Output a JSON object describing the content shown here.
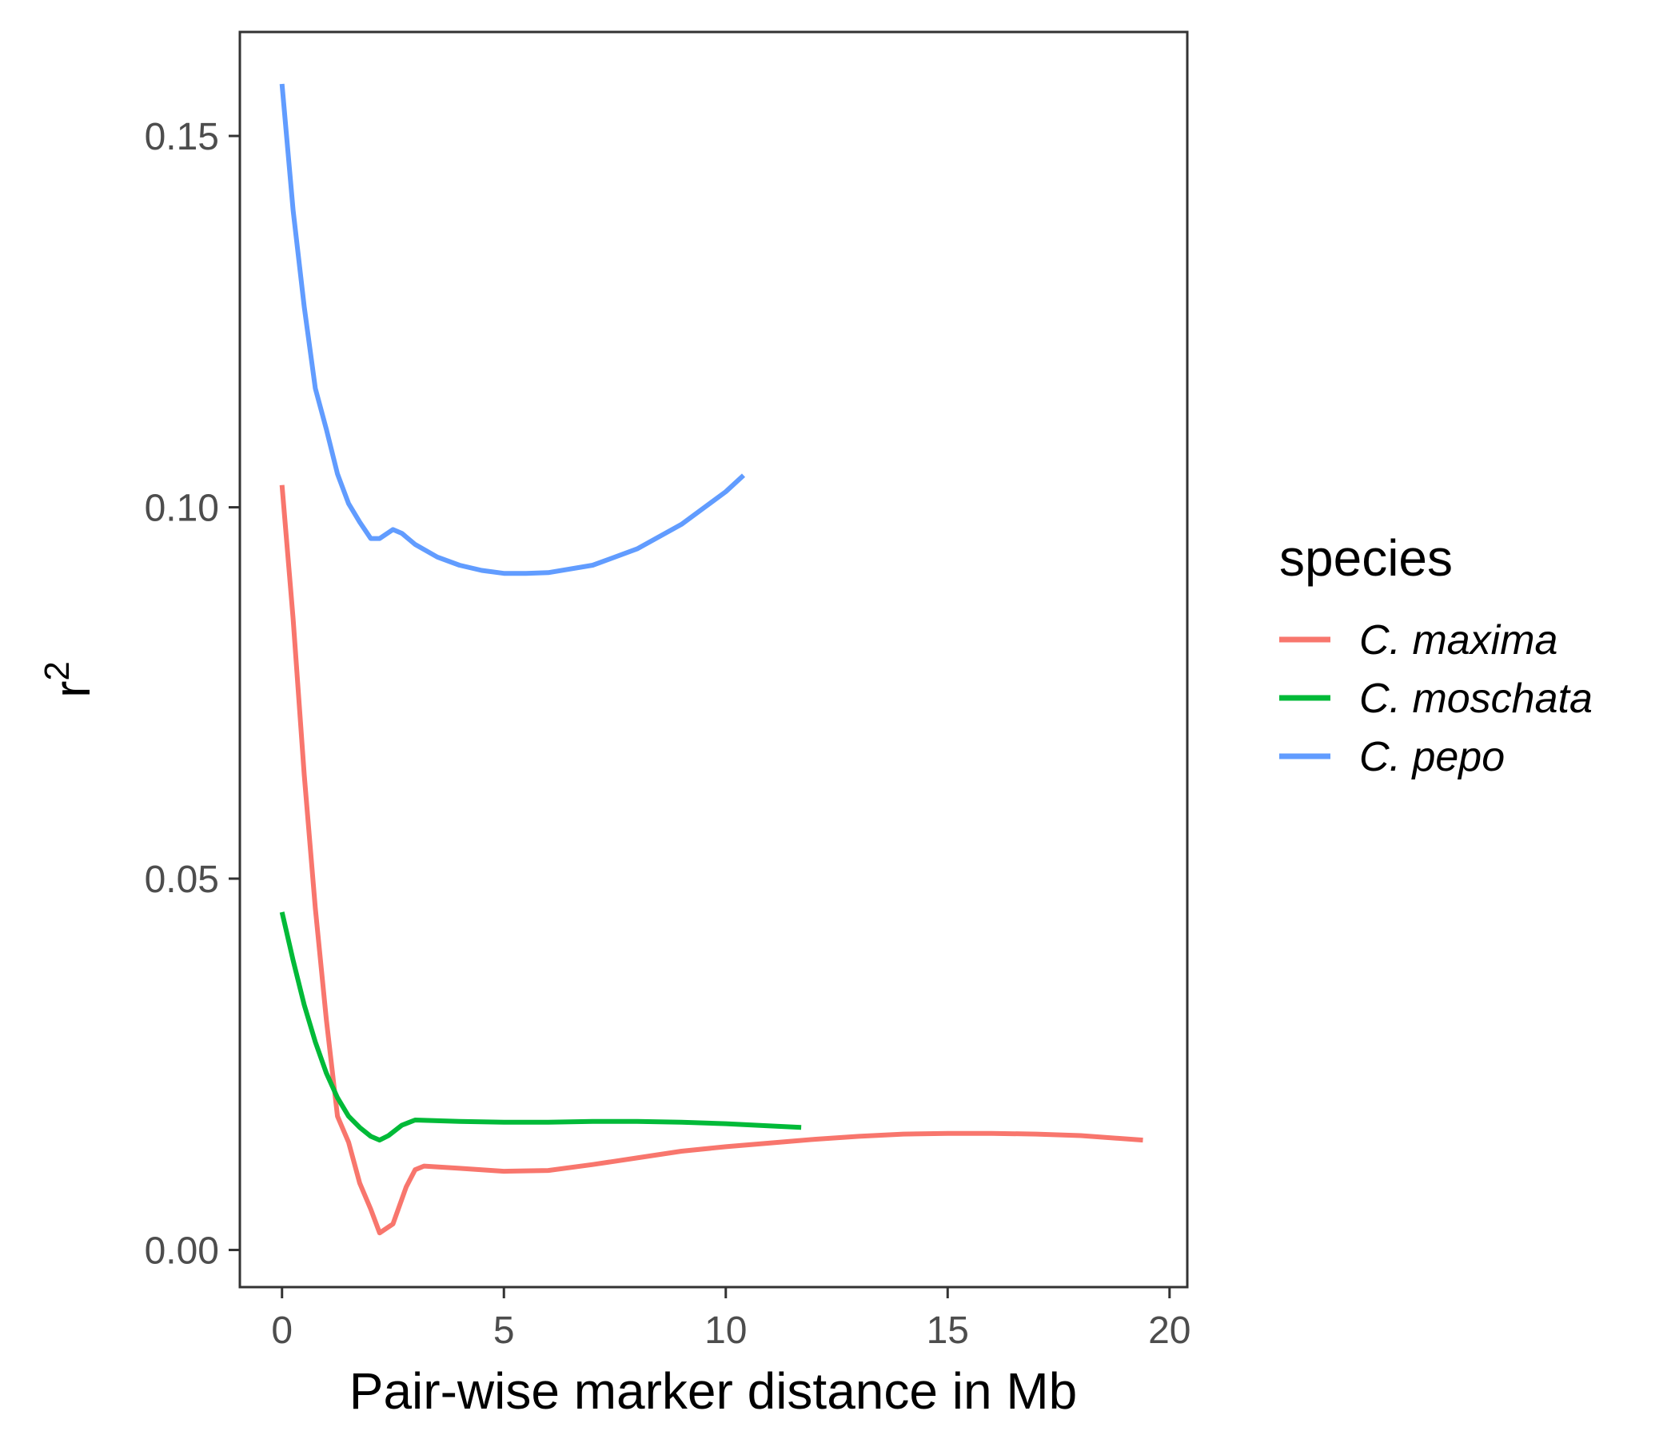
{
  "chart_data": {
    "type": "line",
    "title": "",
    "xlabel": "Pair-wise marker distance in Mb",
    "ylabel": "r",
    "ylabel_superscript": "2",
    "xlim": [
      -0.95,
      20.4
    ],
    "ylim": [
      -0.005,
      0.164
    ],
    "xticks": [
      0,
      5,
      10,
      15,
      20
    ],
    "xtick_labels": [
      "0",
      "5",
      "10",
      "15",
      "20"
    ],
    "yticks": [
      0,
      0.05,
      0.1,
      0.15
    ],
    "ytick_labels": [
      "0.00",
      "0.05",
      "0.10",
      "0.15"
    ],
    "grid": false,
    "legend": {
      "title": "species",
      "placement": "right"
    },
    "series": [
      {
        "name": "C. maxima",
        "color": "#F8766D",
        "x": [
          0,
          0.25,
          0.5,
          0.75,
          1.0,
          1.25,
          1.5,
          1.75,
          2.0,
          2.2,
          2.5,
          2.8,
          3.0,
          3.2,
          4.0,
          5.0,
          6.0,
          7.0,
          8.0,
          9.0,
          10.0,
          11.0,
          12.0,
          13.0,
          14.0,
          15.0,
          16.0,
          17.0,
          18.0,
          19.4
        ],
        "y": [
          0.103,
          0.085,
          0.064,
          0.046,
          0.031,
          0.018,
          0.0145,
          0.009,
          0.0055,
          0.0023,
          0.0035,
          0.0085,
          0.0108,
          0.0113,
          0.011,
          0.0106,
          0.0107,
          0.0115,
          0.0124,
          0.0133,
          0.0139,
          0.0144,
          0.0149,
          0.0153,
          0.0156,
          0.0157,
          0.0157,
          0.0156,
          0.0154,
          0.0148
        ]
      },
      {
        "name": "C. moschata",
        "color": "#00BA38",
        "x": [
          0,
          0.25,
          0.5,
          0.75,
          1.0,
          1.25,
          1.5,
          1.75,
          2.0,
          2.2,
          2.4,
          2.7,
          3.0,
          4.0,
          5.0,
          6.0,
          7.0,
          8.0,
          9.0,
          10.0,
          11.0,
          11.7
        ],
        "y": [
          0.0455,
          0.039,
          0.033,
          0.028,
          0.0238,
          0.0205,
          0.018,
          0.0165,
          0.0153,
          0.0148,
          0.0154,
          0.0168,
          0.0175,
          0.0173,
          0.0172,
          0.0172,
          0.0173,
          0.0173,
          0.0172,
          0.017,
          0.0167,
          0.0165
        ]
      },
      {
        "name": "C. pepo",
        "color": "#619CFF",
        "x": [
          0,
          0.25,
          0.5,
          0.75,
          1.0,
          1.25,
          1.5,
          1.75,
          2.0,
          2.2,
          2.5,
          2.7,
          3.0,
          3.5,
          4.0,
          4.5,
          5.0,
          5.5,
          6.0,
          7.0,
          8.0,
          9.0,
          10.0,
          10.4
        ],
        "y": [
          0.157,
          0.14,
          0.127,
          0.116,
          0.1105,
          0.1045,
          0.1005,
          0.098,
          0.0958,
          0.0958,
          0.097,
          0.0965,
          0.095,
          0.0933,
          0.0922,
          0.0915,
          0.0911,
          0.0911,
          0.0912,
          0.0922,
          0.0944,
          0.0977,
          0.1021,
          0.1043
        ]
      }
    ]
  }
}
